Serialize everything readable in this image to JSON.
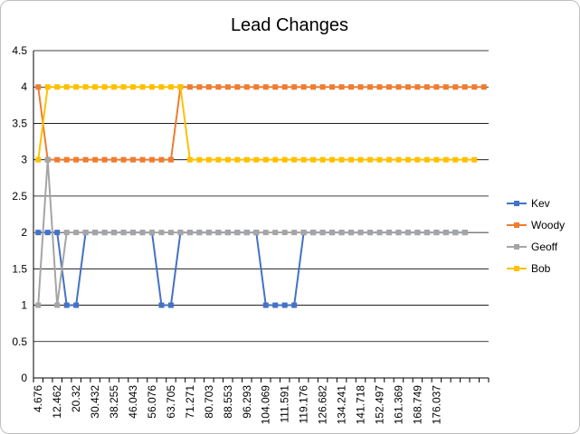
{
  "chart_data": {
    "type": "line",
    "title": "Lead Changes",
    "xlabel": "",
    "ylabel": "",
    "ylim": [
      0,
      4.5
    ],
    "yticks": [
      "0",
      "0.5",
      "1",
      "1.5",
      "2",
      "2.5",
      "3",
      "3.5",
      "4",
      "4.5"
    ],
    "grid": true,
    "legend_position": "right",
    "x_tick_labels": [
      "4.676",
      "12.462",
      "20.32",
      "30.432",
      "38.255",
      "46.043",
      "56.076",
      "63.705",
      "71.271",
      "80.703",
      "88.553",
      "96.293",
      "104.069",
      "111.591",
      "119.176",
      "126.682",
      "134.241",
      "141.718",
      "152.497",
      "161.369",
      "168.749",
      "176.037"
    ],
    "series": [
      {
        "name": "Kev",
        "color": "#4472C4",
        "values": [
          2,
          2,
          2,
          1,
          1,
          2,
          2,
          2,
          2,
          2,
          2,
          2,
          2,
          1,
          1,
          2,
          2,
          2,
          2,
          2,
          2,
          2,
          2,
          2,
          1,
          1,
          1,
          1,
          2,
          2,
          2,
          2,
          2,
          2,
          2,
          2,
          2,
          2,
          2,
          2,
          2,
          2,
          2,
          2,
          2,
          2
        ]
      },
      {
        "name": "Woody",
        "color": "#ED7D31",
        "values": [
          4,
          3,
          3,
          3,
          3,
          3,
          3,
          3,
          3,
          3,
          3,
          3,
          3,
          3,
          3,
          4,
          4,
          4,
          4,
          4,
          4,
          4,
          4,
          4,
          4,
          4,
          4,
          4,
          4,
          4,
          4,
          4,
          4,
          4,
          4,
          4,
          4,
          4,
          4,
          4,
          4,
          4,
          4,
          4,
          4,
          4,
          4,
          4
        ]
      },
      {
        "name": "Geoff",
        "color": "#A5A5A5",
        "values": [
          1,
          3,
          1,
          2,
          2,
          2,
          2,
          2,
          2,
          2,
          2,
          2,
          2,
          2,
          2,
          2,
          2,
          2,
          2,
          2,
          2,
          2,
          2,
          2,
          2,
          2,
          2,
          2,
          2,
          2,
          2,
          2,
          2,
          2,
          2,
          2,
          2,
          2,
          2,
          2,
          2,
          2,
          2,
          2,
          2,
          2
        ]
      },
      {
        "name": "Bob",
        "color": "#FFC000",
        "values": [
          3,
          4,
          4,
          4,
          4,
          4,
          4,
          4,
          4,
          4,
          4,
          4,
          4,
          4,
          4,
          4,
          3,
          3,
          3,
          3,
          3,
          3,
          3,
          3,
          3,
          3,
          3,
          3,
          3,
          3,
          3,
          3,
          3,
          3,
          3,
          3,
          3,
          3,
          3,
          3,
          3,
          3,
          3,
          3,
          3,
          3,
          3
        ]
      }
    ]
  }
}
